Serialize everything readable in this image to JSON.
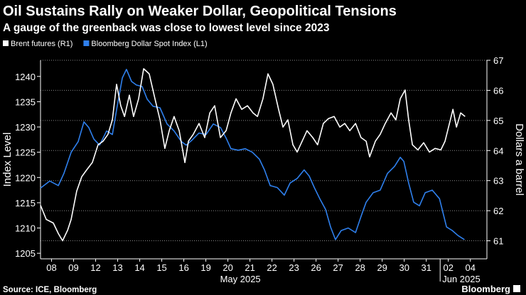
{
  "chart_data": {
    "type": "line",
    "title": "Oil Sustains Rally on Weaker Dollar, Geopolitical Tensions",
    "subtitle": "A gauge of the greenback was close to lowest level since 2023",
    "ylabel": "Index Level",
    "y2label": "Dollars a barrel",
    "month_labels": [
      "May 2025",
      "Jun 2025"
    ],
    "source": "Source: ICE, Bloomberg",
    "brand": "Bloomberg",
    "grid": "y2",
    "xlim": [
      -0.5,
      19.75
    ],
    "xticks": [
      {
        "value": 0,
        "label": "08"
      },
      {
        "value": 1,
        "label": "09"
      },
      {
        "value": 2,
        "label": "12"
      },
      {
        "value": 3,
        "label": "13"
      },
      {
        "value": 4,
        "label": "14"
      },
      {
        "value": 5,
        "label": "15"
      },
      {
        "value": 6,
        "label": "16"
      },
      {
        "value": 7,
        "label": "19"
      },
      {
        "value": 8,
        "label": "20"
      },
      {
        "value": 9,
        "label": "21"
      },
      {
        "value": 10,
        "label": "22"
      },
      {
        "value": 11,
        "label": "23"
      },
      {
        "value": 12,
        "label": "26"
      },
      {
        "value": 13,
        "label": "27"
      },
      {
        "value": 14,
        "label": "28"
      },
      {
        "value": 15,
        "label": "29"
      },
      {
        "value": 16,
        "label": "30"
      },
      {
        "value": 17,
        "label": "31"
      },
      {
        "value": 18,
        "label": "02"
      },
      {
        "value": 19,
        "label": "04"
      }
    ],
    "ylim": [
      1203.9,
      1243.2
    ],
    "yticks": [
      1205,
      1210,
      1215,
      1220,
      1225,
      1230,
      1235,
      1240
    ],
    "y2lim": [
      60.4,
      67.0
    ],
    "y2ticks": [
      61,
      62,
      63,
      64,
      65,
      66,
      67
    ],
    "series": [
      {
        "name": "Brent futures (R1)",
        "color": "#ffffff",
        "axis": "y2",
        "x": [
          -0.5,
          -0.24,
          0.08,
          0.31,
          0.5,
          0.73,
          0.89,
          1.14,
          1.37,
          1.6,
          1.85,
          2.11,
          2.34,
          2.56,
          2.76,
          2.95,
          3.14,
          3.31,
          3.53,
          3.72,
          3.95,
          4.18,
          4.43,
          4.69,
          4.92,
          5.14,
          5.34,
          5.56,
          5.79,
          6.05,
          6.21,
          6.43,
          6.69,
          6.95,
          7.18,
          7.4,
          7.66,
          7.92,
          8.14,
          8.37,
          8.63,
          8.89,
          9.14,
          9.34,
          9.59,
          9.82,
          10.04,
          10.3,
          10.5,
          10.72,
          10.95,
          11.14,
          11.37,
          11.59,
          11.85,
          12.07,
          12.33,
          12.56,
          12.82,
          13.08,
          13.3,
          13.53,
          13.79,
          14.04,
          14.27,
          14.43,
          14.69,
          14.91,
          15.14,
          15.4,
          15.62,
          15.82,
          16.04,
          16.2,
          16.37,
          16.62,
          16.88,
          17.14,
          17.4,
          17.66,
          17.85,
          18.05,
          18.21,
          18.37,
          18.56,
          18.76
        ],
        "values": [
          62.18,
          61.71,
          61.59,
          61.24,
          61.0,
          61.35,
          61.71,
          62.65,
          63.13,
          63.36,
          63.6,
          64.19,
          64.31,
          64.54,
          65.02,
          66.2,
          65.49,
          65.13,
          65.84,
          65.13,
          65.72,
          66.72,
          66.55,
          65.72,
          65.02,
          64.07,
          64.66,
          65.13,
          64.66,
          63.6,
          64.31,
          64.54,
          64.9,
          64.43,
          65.25,
          65.49,
          64.43,
          64.66,
          65.25,
          65.72,
          65.37,
          65.49,
          65.25,
          65.13,
          65.72,
          66.55,
          66.2,
          65.37,
          64.78,
          65.02,
          64.19,
          63.95,
          64.31,
          64.66,
          64.43,
          64.19,
          64.9,
          65.06,
          65.13,
          64.78,
          64.9,
          64.66,
          64.9,
          64.43,
          64.31,
          63.79,
          64.31,
          64.54,
          64.9,
          65.25,
          65.02,
          65.72,
          66.01,
          65.02,
          64.19,
          64.02,
          64.26,
          63.95,
          64.07,
          64.02,
          64.31,
          64.9,
          65.37,
          64.78,
          65.25,
          65.13
        ]
      },
      {
        "name": "Bloomberg Dollar Spot Index  (L1)",
        "color": "#2f80ed",
        "axis": "y",
        "x": [
          -0.5,
          -0.08,
          0.31,
          0.56,
          0.89,
          1.21,
          1.47,
          1.69,
          1.92,
          2.18,
          2.5,
          2.76,
          2.98,
          3.21,
          3.4,
          3.63,
          3.85,
          4.11,
          4.34,
          4.6,
          4.92,
          5.24,
          5.56,
          5.89,
          6.11,
          6.37,
          6.69,
          7.01,
          7.34,
          7.66,
          7.92,
          8.14,
          8.47,
          8.79,
          9.11,
          9.43,
          9.66,
          9.92,
          10.24,
          10.56,
          10.82,
          11.14,
          11.46,
          11.69,
          11.92,
          12.17,
          12.43,
          12.66,
          12.88,
          13.14,
          13.46,
          13.79,
          14.04,
          14.27,
          14.59,
          14.91,
          15.24,
          15.56,
          15.82,
          15.98,
          16.2,
          16.43,
          16.69,
          16.95,
          17.27,
          17.6,
          17.92,
          18.18,
          18.44,
          18.73
        ],
        "values": [
          1217.9,
          1219.3,
          1218.4,
          1220.8,
          1225.0,
          1227.1,
          1231.0,
          1229.9,
          1227.6,
          1226.4,
          1229.2,
          1228.5,
          1234.1,
          1239.7,
          1241.4,
          1239.0,
          1238.3,
          1238.0,
          1235.5,
          1234.1,
          1233.8,
          1230.6,
          1229.2,
          1227.1,
          1226.4,
          1227.4,
          1228.8,
          1228.5,
          1230.6,
          1229.9,
          1227.8,
          1225.7,
          1225.4,
          1225.7,
          1225.0,
          1223.6,
          1221.5,
          1218.4,
          1218.0,
          1216.5,
          1218.9,
          1219.8,
          1221.5,
          1220.3,
          1218.0,
          1215.8,
          1213.7,
          1210.2,
          1207.7,
          1209.5,
          1210.0,
          1209.1,
          1212.3,
          1215.1,
          1217.0,
          1217.5,
          1220.8,
          1222.2,
          1224.0,
          1223.2,
          1218.9,
          1215.1,
          1214.4,
          1217.0,
          1217.5,
          1215.8,
          1210.2,
          1209.5,
          1208.5,
          1207.7
        ]
      }
    ]
  }
}
